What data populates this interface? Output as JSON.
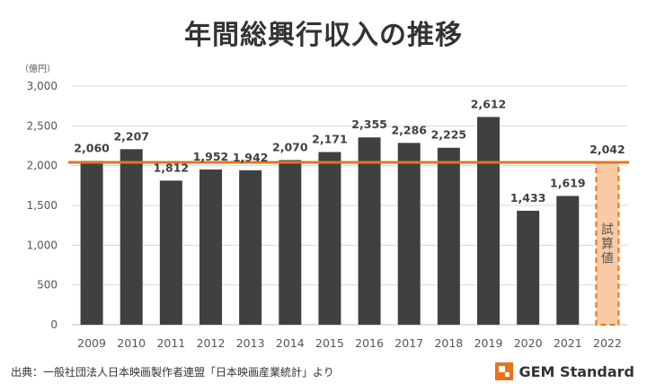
{
  "title": "年間総興行収入の推移",
  "source_note": "出典：一般社団法人日本映画製作者連盟「日本映画産業統計」より",
  "brand": {
    "name": "GEM Standard",
    "icon": "gem-standard-logo-icon",
    "color": "#e8731b"
  },
  "chart_data": {
    "type": "bar",
    "unit_label": "（億円）",
    "categories": [
      "2009",
      "2010",
      "2011",
      "2012",
      "2013",
      "2014",
      "2015",
      "2016",
      "2017",
      "2018",
      "2019",
      "2020",
      "2021",
      "2022"
    ],
    "values": [
      2060,
      2207,
      1812,
      1952,
      1942,
      2070,
      2171,
      2355,
      2286,
      2225,
      2612,
      1433,
      1619,
      2042
    ],
    "value_labels": [
      "2,060",
      "2,207",
      "1,812",
      "1,952",
      "1,942",
      "2,070",
      "2,171",
      "2,355",
      "2,286",
      "2,225",
      "2,612",
      "1,433",
      "1,619",
      "2,042"
    ],
    "y_ticks": [
      0,
      500,
      1000,
      1500,
      2000,
      2500,
      3000
    ],
    "y_tick_labels": [
      "0",
      "500",
      "1,000",
      "1,500",
      "2,000",
      "2,500",
      "3,000"
    ],
    "ylim": [
      0,
      3000
    ],
    "grid": true,
    "legend": "none",
    "bar_color": "#404040",
    "estimate": {
      "category": "2022",
      "label": "試算値",
      "fill": "#f8cba4",
      "border": "#e8731b"
    },
    "reference_line": {
      "value": 2042,
      "color": "#e8731b"
    }
  }
}
